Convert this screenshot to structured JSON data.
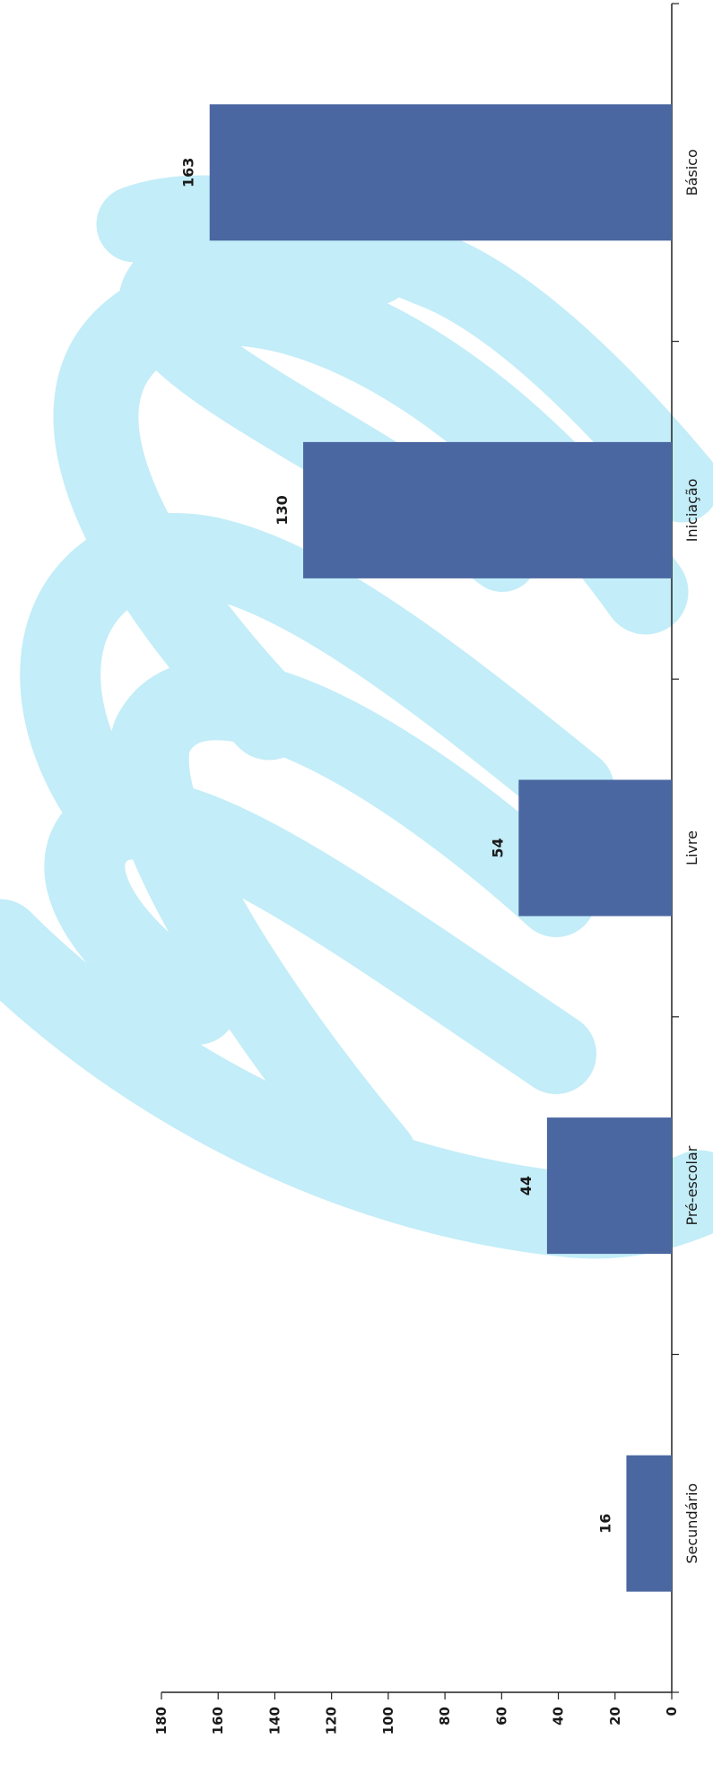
{
  "chart_data": {
    "type": "bar",
    "orientation": "horizontal",
    "categories": [
      "Básico",
      "Iniciação",
      "Livre",
      "Pré-escolar",
      "Secundário"
    ],
    "values": [
      163,
      130,
      54,
      44,
      16
    ],
    "data_labels": [
      "163",
      "130",
      "54",
      "44",
      "16"
    ],
    "ylim": [
      0,
      180
    ],
    "ticks": [
      0,
      20,
      40,
      60,
      80,
      100,
      120,
      140,
      160,
      180
    ],
    "tick_labels": [
      "0",
      "20",
      "40",
      "60",
      "80",
      "100",
      "120",
      "140",
      "160",
      "180"
    ],
    "grid": false,
    "legend": "none",
    "bar_color": "#4a67a1",
    "watermark_color": "#b9ebf7",
    "watermark": "ENSINO MUSICAL logo"
  }
}
